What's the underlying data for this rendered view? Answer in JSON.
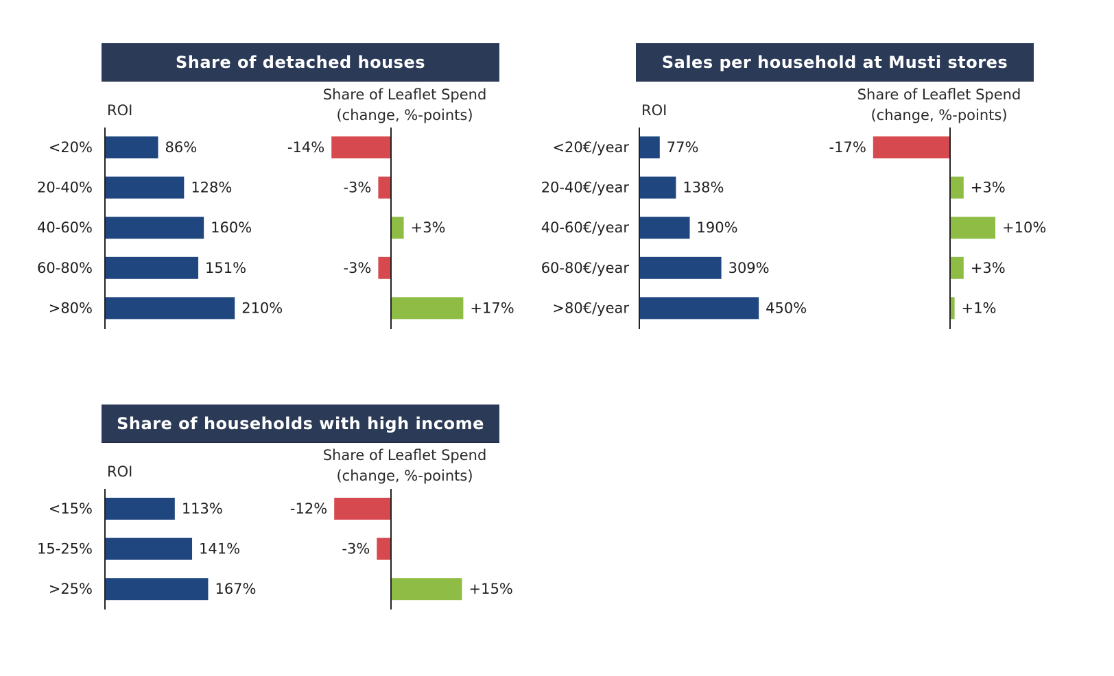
{
  "colors": {
    "header_bg": "#2b3a57",
    "roi_bar": "#1f467f",
    "negative_bar": "#d64a4f",
    "positive_bar": "#8fbc45"
  },
  "chart_data": [
    {
      "type": "bar",
      "title": "Share of detached houses",
      "roi_label": "ROI",
      "leaflet_label_line1": "Share of Leaflet Spend",
      "leaflet_label_line2": "(change, %-points)",
      "categories": [
        "<20%",
        "20-40%",
        "40-60%",
        "60-80%",
        ">80%"
      ],
      "series": [
        {
          "values": [
            86,
            128,
            160,
            151,
            210
          ],
          "value_labels": [
            "86%",
            "128%",
            "160%",
            "151%",
            "210%"
          ]
        },
        {
          "values": [
            -14,
            -3,
            3,
            -3,
            17
          ],
          "value_labels": [
            "-14%",
            "-3%",
            "+3%",
            "-3%",
            "+17%"
          ]
        }
      ]
    },
    {
      "type": "bar",
      "title": "Sales per household at Musti stores",
      "roi_label": "ROI",
      "leaflet_label_line1": "Share of Leaflet Spend",
      "leaflet_label_line2": "(change, %-points)",
      "categories": [
        "<20€/year",
        "20-40€/year",
        "40-60€/year",
        "60-80€/year",
        ">80€/year"
      ],
      "series": [
        {
          "values": [
            77,
            138,
            190,
            309,
            450
          ],
          "value_labels": [
            "77%",
            "138%",
            "190%",
            "309%",
            "450%"
          ]
        },
        {
          "values": [
            -17,
            3,
            10,
            3,
            1
          ],
          "value_labels": [
            "-17%",
            "+3%",
            "+10%",
            "+3%",
            "+1%"
          ]
        }
      ]
    },
    {
      "type": "bar",
      "title": "Share of households with high income",
      "roi_label": "ROI",
      "leaflet_label_line1": "Share of Leaflet Spend",
      "leaflet_label_line2": "(change, %-points)",
      "categories": [
        "<15%",
        "15-25%",
        ">25%"
      ],
      "series": [
        {
          "values": [
            113,
            141,
            167
          ],
          "value_labels": [
            "113%",
            "141%",
            "167%"
          ]
        },
        {
          "values": [
            -12,
            -3,
            15
          ],
          "value_labels": [
            "-12%",
            "-3%",
            "+15%"
          ]
        }
      ]
    }
  ]
}
